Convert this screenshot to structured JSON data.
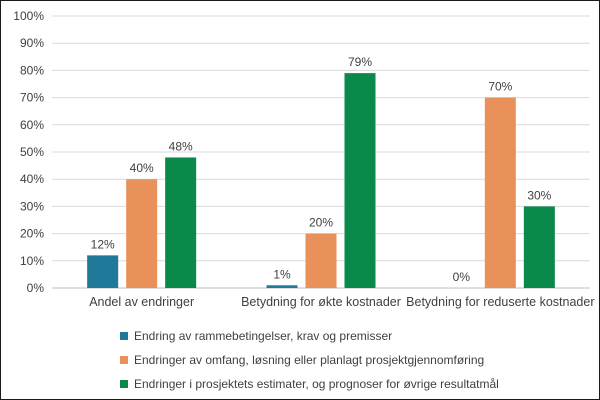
{
  "chart_data": {
    "type": "bar",
    "categories": [
      "Andel av endringer",
      "Betydning for økte kostnader",
      "Betydning for reduserte kostnader"
    ],
    "series": [
      {
        "name": "Endring av rammebetingelser, krav og premisser",
        "color": "#1F7A9A",
        "values": [
          12,
          1,
          0
        ],
        "labels": [
          "12%",
          "1%",
          "0%"
        ]
      },
      {
        "name": "Endringer av omfang, løsning eller planlagt prosjektgjennomføring",
        "color": "#E8915B",
        "values": [
          40,
          20,
          70
        ],
        "labels": [
          "40%",
          "20%",
          "70%"
        ]
      },
      {
        "name": "Endringer i prosjektets estimater, og prognoser for øvrige resultatmål",
        "color": "#0A8A4A",
        "values": [
          48,
          79,
          30
        ],
        "labels": [
          "48%",
          "79%",
          "30%"
        ]
      }
    ],
    "ylim": [
      0,
      100
    ],
    "yticks": [
      "0%",
      "10%",
      "20%",
      "30%",
      "40%",
      "50%",
      "60%",
      "70%",
      "80%",
      "90%",
      "100%"
    ],
    "grid": true,
    "legend_position": "bottom"
  }
}
